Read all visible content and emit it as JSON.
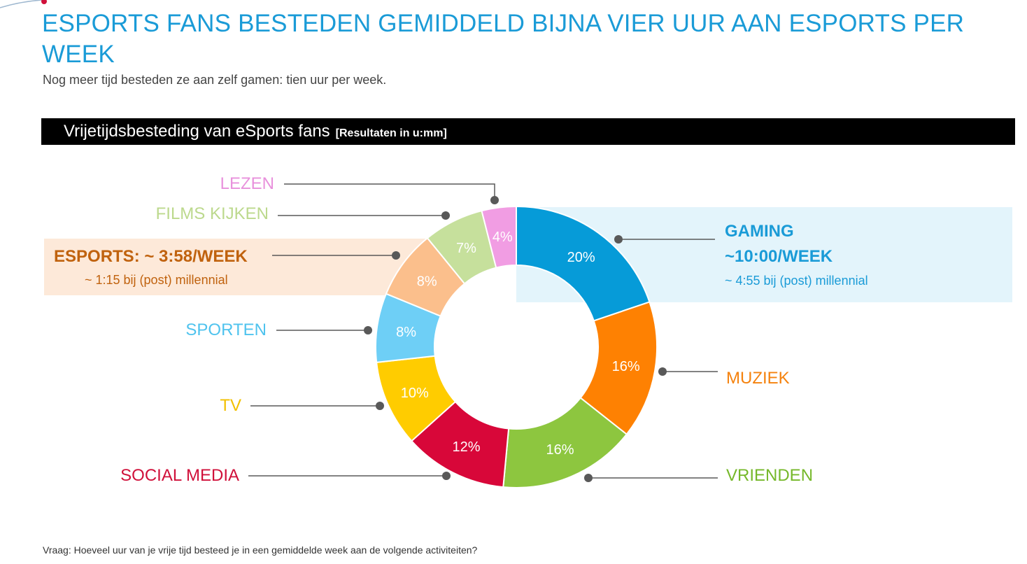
{
  "header": {
    "title": "ESPORTS FANS BESTEDEN GEMIDDELD BIJNA VIER UUR AAN ESPORTS PER WEEK",
    "subtitle": "Nog meer tijd besteden ze aan zelf gamen: tien uur per week."
  },
  "chart_header": {
    "title": "Vrijetijdsbesteding van eSports fans",
    "unit_note": "[Resultaten in u:mm]"
  },
  "callouts": {
    "gaming": {
      "line1": "GAMING",
      "line2": "~10:00/WEEK",
      "sub": "~ 4:55 bij (post) millennial",
      "color": "#1a9bd7"
    },
    "esports": {
      "line1": "ESPORTS:  ~ 3:58/WEEK",
      "sub": "~ 1:15 bij (post) millennial",
      "color": "#c0620e"
    }
  },
  "chart_data": {
    "type": "pie",
    "donut": true,
    "categories": [
      "Gaming",
      "Muziek",
      "Vrienden",
      "Social Media",
      "TV",
      "Sporten",
      "eSports",
      "Films kijken",
      "Lezen"
    ],
    "values": [
      20,
      16,
      16,
      12,
      10,
      8,
      8,
      7,
      4
    ],
    "value_labels": [
      "20%",
      "16%",
      "16%",
      "12%",
      "10%",
      "8%",
      "8%",
      "7%",
      "4%"
    ],
    "colors": [
      "#069bd8",
      "#fe8102",
      "#8dc63f",
      "#d80739",
      "#ffcc00",
      "#6ecff6",
      "#fbbf8c",
      "#c6e09c",
      "#f19de3"
    ],
    "slice_labels": [
      "",
      "MUZIEK",
      "VRIENDEN",
      "SOCIAL MEDIA",
      "TV",
      "SPORTEN",
      "",
      "FILMS KIJKEN",
      "LEZEN"
    ],
    "slice_label_colors": [
      "#1a9bd7",
      "#f5820d",
      "#76b82a",
      "#d0103a",
      "#f2c000",
      "#4fc3ee",
      "#c0620e",
      "#bcd98d",
      "#e891dc"
    ]
  },
  "footnote": "Vraag: Hoeveel uur van je vrije tijd besteed je in een gemiddelde week aan de volgende activiteiten?"
}
